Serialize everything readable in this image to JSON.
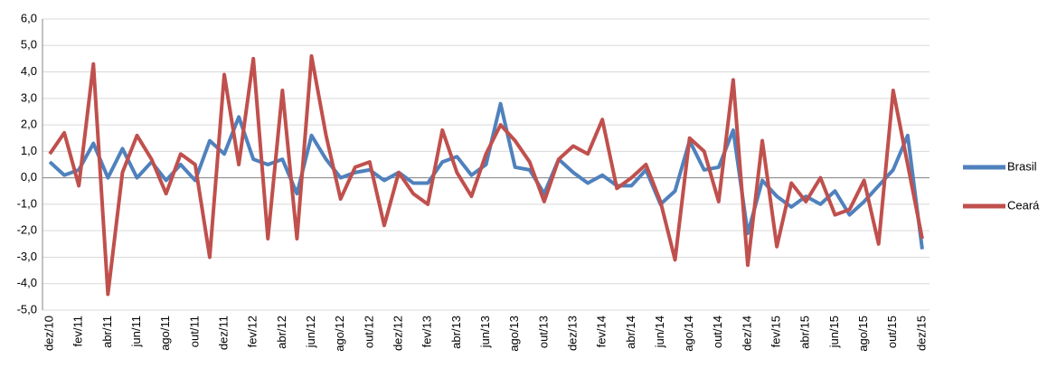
{
  "chart_data": {
    "type": "line",
    "categories": [
      "dez/10",
      null,
      "fev/11",
      null,
      "abr/11",
      null,
      "jun/11",
      null,
      "ago/11",
      null,
      "out/11",
      null,
      "dez/11",
      null,
      "fev/12",
      null,
      "abr/12",
      null,
      "jun/12",
      null,
      "ago/12",
      null,
      "out/12",
      null,
      "dez/12",
      null,
      "fev/13",
      null,
      "abr/13",
      null,
      "jun/13",
      null,
      "ago/13",
      null,
      "out/13",
      null,
      "dez/13",
      null,
      "fev/14",
      null,
      "abr/14",
      null,
      "jun/14",
      null,
      "ago/14",
      null,
      "out/14",
      null,
      "dez/14",
      null,
      "fev/15",
      null,
      "abr/15",
      null,
      "jun/15",
      null,
      "ago/15",
      null,
      "out/15",
      null,
      "dez/15"
    ],
    "series": [
      {
        "name": "Brasil",
        "color": "#4f81bd",
        "values": [
          0.6,
          0.1,
          0.3,
          1.3,
          0.0,
          1.1,
          0.0,
          0.6,
          -0.1,
          0.5,
          -0.1,
          1.4,
          0.9,
          2.3,
          0.7,
          0.5,
          0.7,
          -0.6,
          1.6,
          0.7,
          0.0,
          0.2,
          0.3,
          -0.1,
          0.2,
          -0.2,
          -0.2,
          0.6,
          0.8,
          0.1,
          0.5,
          2.8,
          0.4,
          0.3,
          -0.6,
          0.7,
          0.2,
          -0.2,
          0.1,
          -0.3,
          -0.3,
          0.3,
          -1.0,
          -0.5,
          1.4,
          0.3,
          0.4,
          1.8,
          -2.1,
          -0.1,
          -0.7,
          -1.1,
          -0.7,
          -1.0,
          -0.5,
          -1.4,
          -0.9,
          -0.3,
          0.3,
          1.6,
          -2.7
        ]
      },
      {
        "name": "Ceará",
        "color": "#c0504d",
        "values": [
          0.9,
          1.7,
          -0.3,
          4.3,
          -4.4,
          0.2,
          1.6,
          0.7,
          -0.6,
          0.9,
          0.5,
          -3.0,
          3.9,
          0.5,
          4.5,
          -2.3,
          3.3,
          -2.3,
          4.6,
          1.6,
          -0.8,
          0.4,
          0.6,
          -1.8,
          0.2,
          -0.6,
          -1.0,
          1.8,
          0.2,
          -0.7,
          0.9,
          2.0,
          1.4,
          0.6,
          -0.9,
          0.7,
          1.2,
          0.9,
          2.2,
          -0.4,
          0.0,
          0.5,
          -0.9,
          -3.1,
          1.5,
          1.0,
          -0.9,
          3.7,
          -3.3,
          1.4,
          -2.6,
          -0.2,
          -0.9,
          0.0,
          -1.4,
          -1.2,
          -0.1,
          -2.5,
          3.3,
          0.5,
          -2.3
        ]
      }
    ],
    "ylim": [
      -5,
      6
    ],
    "yticks": [
      {
        "value": -5,
        "label": "-5,0"
      },
      {
        "value": -4,
        "label": "-4,0"
      },
      {
        "value": -3,
        "label": "-3,0"
      },
      {
        "value": -2,
        "label": "-2,0"
      },
      {
        "value": -1,
        "label": "-1,0"
      },
      {
        "value": 0,
        "label": "0,0"
      },
      {
        "value": 1,
        "label": "1,0"
      },
      {
        "value": 2,
        "label": "2,0"
      },
      {
        "value": 3,
        "label": "3,0"
      },
      {
        "value": 4,
        "label": "4,0"
      },
      {
        "value": 5,
        "label": "5,0"
      },
      {
        "value": 6,
        "label": "6,0"
      }
    ],
    "grid": true,
    "legend": "right"
  }
}
